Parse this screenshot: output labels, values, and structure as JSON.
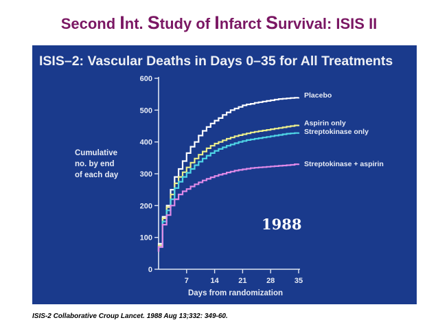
{
  "slide": {
    "title_parts": [
      {
        "text": "Second ",
        "cap": false
      },
      {
        "text": "I",
        "cap": true
      },
      {
        "text": "nt. ",
        "cap": false
      },
      {
        "text": "S",
        "cap": true
      },
      {
        "text": "tudy of ",
        "cap": false
      },
      {
        "text": "I",
        "cap": true
      },
      {
        "text": "nfarct ",
        "cap": false
      },
      {
        "text": "S",
        "cap": true
      },
      {
        "text": "urvival: ISIS II",
        "cap": false
      }
    ],
    "citation": "ISIS-2 Collaborative Croup Lancet. 1988 Aug 13;332: 349-60.",
    "year_stamp": "1988"
  },
  "colors": {
    "title": "#7a1763",
    "panel_background": "#1a3a8c",
    "chart_title": "#eef0f5",
    "text": "#e8ecf5",
    "axis": "#dfe6f2",
    "year_stamp": "#ffffff"
  },
  "chart_data": {
    "type": "line",
    "title": "ISIS–2:  Vascular Deaths in Days 0–35 for All Treatments",
    "xlabel": "Days from randomization",
    "ylabel": [
      "Cumulative",
      "no. by end",
      "of each day"
    ],
    "xlim": [
      0,
      35
    ],
    "ylim": [
      0,
      600
    ],
    "xticks": [
      7,
      14,
      21,
      28,
      35
    ],
    "yticks": [
      0,
      100,
      200,
      300,
      400,
      500,
      600
    ],
    "grid": false,
    "legend_placement": "right of curve ends",
    "step": true,
    "series": [
      {
        "name": "Placebo",
        "color": "#ffffff",
        "x": [
          0,
          1,
          2,
          3,
          4,
          5,
          6,
          7,
          8,
          9,
          10,
          11,
          12,
          13,
          14,
          15,
          16,
          17,
          18,
          19,
          20,
          21,
          22,
          23,
          24,
          25,
          26,
          27,
          28,
          29,
          30,
          31,
          32,
          33,
          34,
          35
        ],
        "y": [
          80,
          165,
          200,
          250,
          290,
          315,
          340,
          365,
          385,
          400,
          420,
          435,
          447,
          458,
          467,
          475,
          485,
          493,
          500,
          505,
          510,
          515,
          518,
          520,
          523,
          525,
          527,
          529,
          531,
          533,
          535,
          536,
          537,
          538,
          539,
          540
        ]
      },
      {
        "name": "Aspirin only",
        "color": "#ecee8c",
        "x": [
          0,
          1,
          2,
          3,
          4,
          5,
          6,
          7,
          8,
          9,
          10,
          11,
          12,
          13,
          14,
          15,
          16,
          17,
          18,
          19,
          20,
          21,
          22,
          23,
          24,
          25,
          26,
          27,
          28,
          29,
          30,
          31,
          32,
          33,
          34,
          35
        ],
        "y": [
          75,
          160,
          195,
          235,
          270,
          290,
          305,
          320,
          335,
          348,
          360,
          370,
          380,
          388,
          395,
          400,
          405,
          410,
          414,
          418,
          421,
          424,
          427,
          430,
          432,
          434,
          436,
          438,
          440,
          442,
          444,
          446,
          448,
          450,
          452,
          454
        ]
      },
      {
        "name": "Streptokinase only",
        "color": "#4fd6e6",
        "x": [
          0,
          1,
          2,
          3,
          4,
          5,
          6,
          7,
          8,
          9,
          10,
          11,
          12,
          13,
          14,
          15,
          16,
          17,
          18,
          19,
          20,
          21,
          22,
          23,
          24,
          25,
          26,
          27,
          28,
          29,
          30,
          31,
          32,
          33,
          34,
          35
        ],
        "y": [
          70,
          150,
          185,
          220,
          255,
          275,
          290,
          303,
          315,
          327,
          338,
          348,
          357,
          365,
          372,
          378,
          383,
          388,
          392,
          396,
          400,
          403,
          406,
          408,
          410,
          412,
          414,
          416,
          418,
          420,
          422,
          424,
          426,
          427,
          428,
          430
        ]
      },
      {
        "name": "Streptokinase + aspirin",
        "color": "#e08ae8",
        "x": [
          0,
          1,
          2,
          3,
          4,
          5,
          6,
          7,
          8,
          9,
          10,
          11,
          12,
          13,
          14,
          15,
          16,
          17,
          18,
          19,
          20,
          21,
          22,
          23,
          24,
          25,
          26,
          27,
          28,
          29,
          30,
          31,
          32,
          33,
          34,
          35
        ],
        "y": [
          70,
          140,
          170,
          200,
          220,
          235,
          245,
          252,
          260,
          267,
          273,
          279,
          284,
          289,
          293,
          297,
          300,
          304,
          307,
          310,
          312,
          314,
          316,
          318,
          319,
          320,
          321,
          322,
          323,
          324,
          325,
          326,
          327,
          328,
          330,
          332
        ]
      }
    ]
  }
}
